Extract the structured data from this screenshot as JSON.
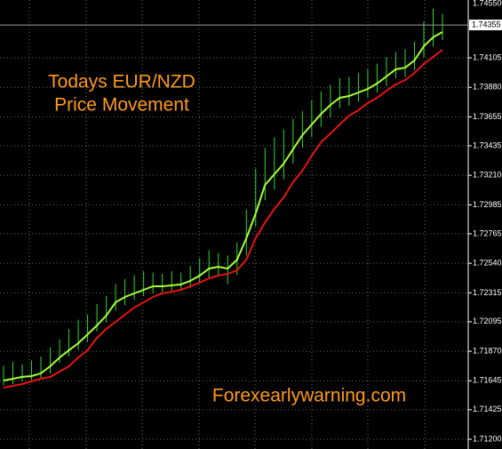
{
  "chart_data": {
    "type": "ohlc",
    "annotations": [
      "Todays EUR/NZD",
      "Price Movement",
      "Forexearlywarning.com"
    ],
    "ylim": [
      1.71126,
      1.74545
    ],
    "yticks": [
      {
        "value": 1.7455,
        "label": "1.74550"
      },
      1.74105,
      {
        "value": 1.7388,
        "label": "1.73880"
      },
      1.73655,
      1.73435,
      {
        "value": 1.7321,
        "label": "1.73210"
      },
      1.72985,
      1.72765,
      {
        "value": 1.7254,
        "label": "1.72540"
      },
      1.72315,
      1.72095,
      {
        "value": 1.7187,
        "label": "1.71870"
      },
      1.71645,
      1.71425,
      {
        "value": 1.712,
        "label": "1.71200"
      }
    ],
    "current_price": 1.74355,
    "grid": true,
    "bars": {
      "color": "#2ed82e",
      "high": [
        1.7176,
        1.7179,
        1.7177,
        1.718,
        1.7183,
        1.719,
        1.7196,
        1.7204,
        1.7211,
        1.7215,
        1.7223,
        1.7229,
        1.7238,
        1.7242,
        1.7245,
        1.7248,
        1.7247,
        1.7246,
        1.7248,
        1.7247,
        1.7252,
        1.7258,
        1.7264,
        1.7262,
        1.726,
        1.727,
        1.7295,
        1.7326,
        1.7342,
        1.735,
        1.7356,
        1.7364,
        1.737,
        1.7378,
        1.7385,
        1.739,
        1.7395,
        1.7396,
        1.7399,
        1.7402,
        1.7406,
        1.7411,
        1.7415,
        1.7417,
        1.7423,
        1.7438,
        1.7448,
        1.7444
      ],
      "low": [
        1.7161,
        1.7162,
        1.7164,
        1.7165,
        1.7166,
        1.717,
        1.7178,
        1.7183,
        1.7188,
        1.7194,
        1.7202,
        1.7209,
        1.7218,
        1.7222,
        1.7226,
        1.7229,
        1.7231,
        1.7232,
        1.7232,
        1.7233,
        1.7235,
        1.7239,
        1.7243,
        1.7244,
        1.7238,
        1.7245,
        1.726,
        1.7282,
        1.7302,
        1.731,
        1.7318,
        1.733,
        1.7342,
        1.735,
        1.7358,
        1.7365,
        1.7372,
        1.7374,
        1.7377,
        1.738,
        1.7384,
        1.7389,
        1.7395,
        1.7396,
        1.7401,
        1.7411,
        1.7419,
        1.7424
      ]
    },
    "moving_averages": [
      {
        "color": "#a8ff3a",
        "values": [
          1.71647,
          1.71661,
          1.71675,
          1.71681,
          1.71702,
          1.71756,
          1.71823,
          1.71878,
          1.71932,
          1.71999,
          1.72067,
          1.72142,
          1.72243,
          1.72284,
          1.72311,
          1.72338,
          1.72365,
          1.72365,
          1.72372,
          1.72379,
          1.72406,
          1.72446,
          1.725,
          1.72514,
          1.725,
          1.72568,
          1.72731,
          1.7292,
          1.73137,
          1.73218,
          1.73299,
          1.73408,
          1.73516,
          1.73597,
          1.73678,
          1.73746,
          1.738,
          1.73814,
          1.73841,
          1.73868,
          1.73909,
          1.73963,
          1.74017,
          1.7403,
          1.74085,
          1.74193,
          1.74261,
          1.74301
        ]
      },
      {
        "color": "#e81212",
        "values": [
          1.71593,
          1.71607,
          1.7162,
          1.71641,
          1.71661,
          1.71675,
          1.71715,
          1.71756,
          1.71823,
          1.71878,
          1.71972,
          1.7204,
          1.72094,
          1.72148,
          1.72203,
          1.72243,
          1.72284,
          1.72311,
          1.72324,
          1.72338,
          1.72365,
          1.72392,
          1.72426,
          1.72446,
          1.7246,
          1.72487,
          1.72568,
          1.72731,
          1.72852,
          1.72954,
          1.73042,
          1.73157,
          1.73245,
          1.7336,
          1.73462,
          1.73529,
          1.73597,
          1.73665,
          1.73706,
          1.7376,
          1.738,
          1.73854,
          1.73902,
          1.73936,
          1.7399,
          1.74058,
          1.74112,
          1.74166
        ]
      }
    ]
  }
}
